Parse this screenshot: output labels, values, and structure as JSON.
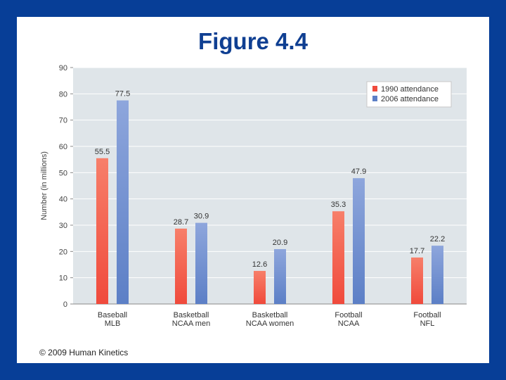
{
  "slide": {
    "title": "Figure 4.4",
    "copyright": "© 2009 Human Kinetics"
  },
  "colors": {
    "frame": "#073e97",
    "plot_bg": "#dfe5e9",
    "grid": "#ffffff",
    "series_1990": "#f04a3c",
    "series_2006": "#5c7fc6",
    "title": "#0f3f92"
  },
  "chart_data": {
    "type": "bar",
    "ylabel": "Number (in millions)",
    "xlabel": "",
    "ylim": [
      0,
      90
    ],
    "yticks": [
      0,
      10,
      20,
      30,
      40,
      50,
      60,
      70,
      80,
      90
    ],
    "grid": true,
    "legend_position": "top-right",
    "categories": [
      [
        "Baseball",
        "MLB"
      ],
      [
        "Basketball",
        "NCAA men"
      ],
      [
        "Basketball",
        "NCAA women"
      ],
      [
        "Football",
        "NCAA"
      ],
      [
        "Football",
        "NFL"
      ]
    ],
    "series": [
      {
        "name": "1990 attendance",
        "values": [
          55.5,
          28.7,
          12.6,
          35.3,
          17.7
        ],
        "labels": [
          "55.5",
          "28.7",
          "12.6",
          "35.3",
          "17.7"
        ]
      },
      {
        "name": "2006 attendance",
        "values": [
          77.5,
          30.9,
          20.9,
          47.9,
          22.2
        ],
        "labels": [
          "77.5",
          "30.9",
          "20.9",
          "47.9",
          "22.2"
        ]
      }
    ]
  }
}
